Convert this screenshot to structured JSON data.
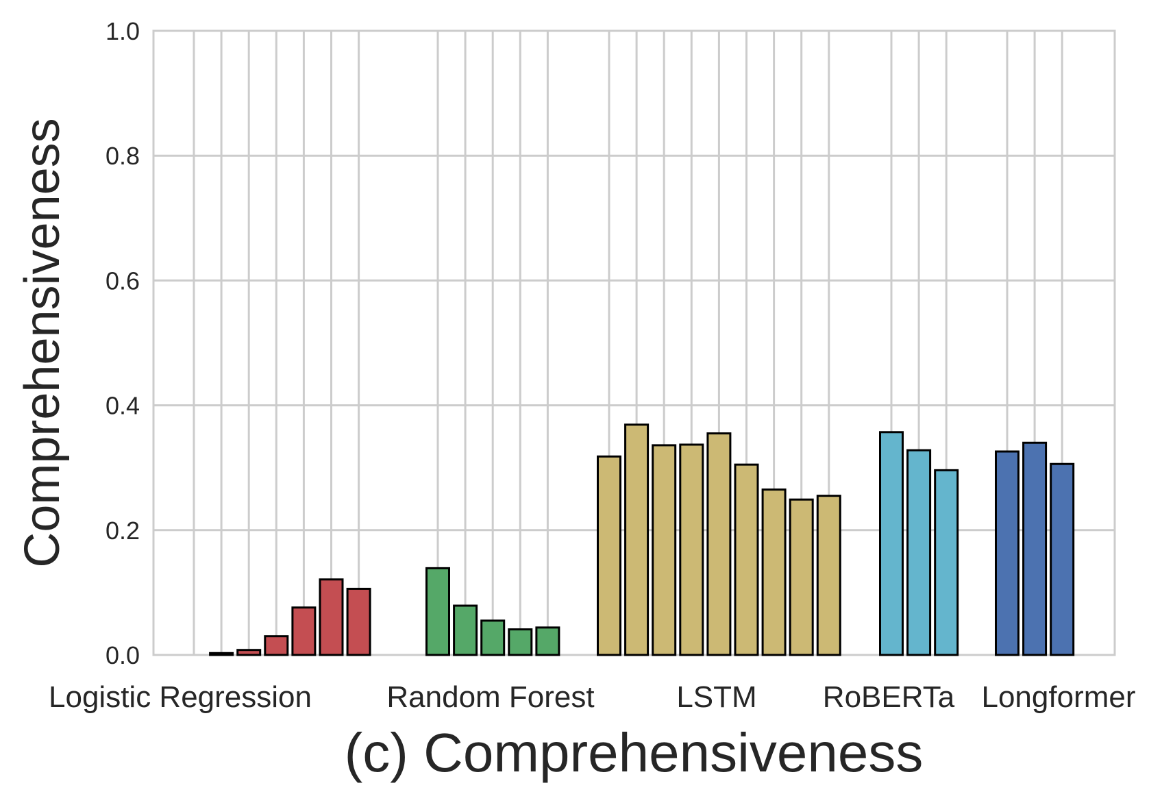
{
  "chart_data": {
    "type": "bar",
    "title": "",
    "xlabel": "(c) Comprehensiveness",
    "ylabel": "Comprehensiveness",
    "ylim": [
      0,
      1.0
    ],
    "yticks": [
      "0.0",
      "0.2",
      "0.4",
      "0.6",
      "0.8",
      "1.0"
    ],
    "grid": true,
    "groups": [
      {
        "name": "Logistic Regression",
        "color": "#c44e52",
        "values": [
          0.0,
          0.003,
          0.008,
          0.03,
          0.076,
          0.121,
          0.106
        ]
      },
      {
        "name": "Random Forest",
        "color": "#55a868",
        "values": [
          0.139,
          0.079,
          0.055,
          0.041,
          0.044
        ]
      },
      {
        "name": "LSTM",
        "color": "#ccb974",
        "values": [
          0.318,
          0.369,
          0.336,
          0.337,
          0.355,
          0.305,
          0.265,
          0.249,
          0.255
        ]
      },
      {
        "name": "RoBERTa",
        "color": "#64b5cd",
        "values": [
          0.357,
          0.328,
          0.296
        ]
      },
      {
        "name": "Longformer",
        "color": "#4c72b0",
        "values": [
          0.326,
          0.34,
          0.306
        ]
      }
    ]
  }
}
